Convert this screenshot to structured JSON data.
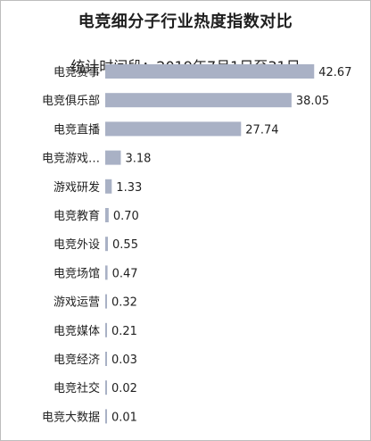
{
  "chart_data": {
    "type": "bar",
    "orientation": "horizontal",
    "title": "电竞细分子行业热度指数对比",
    "subtitle": "统计时间段：2019年7月1日至31日",
    "categories": [
      "电竞赛事",
      "电竞俱乐部",
      "电竞直播",
      "电竞游戏…",
      "游戏研发",
      "电竞教育",
      "电竞外设",
      "电竞场馆",
      "游戏运营",
      "电竞媒体",
      "电竞经济",
      "电竞社交",
      "电竞大数据"
    ],
    "values": [
      42.67,
      38.05,
      27.74,
      3.18,
      1.33,
      0.7,
      0.55,
      0.47,
      0.32,
      0.21,
      0.03,
      0.02,
      0.01
    ],
    "value_labels": [
      "42.67",
      "38.05",
      "27.74",
      "3.18",
      "1.33",
      "0.70",
      "0.55",
      "0.47",
      "0.32",
      "0.21",
      "0.03",
      "0.02",
      "0.01"
    ],
    "bar_color": "#a9b1c5",
    "legend": "none",
    "grid": false
  }
}
